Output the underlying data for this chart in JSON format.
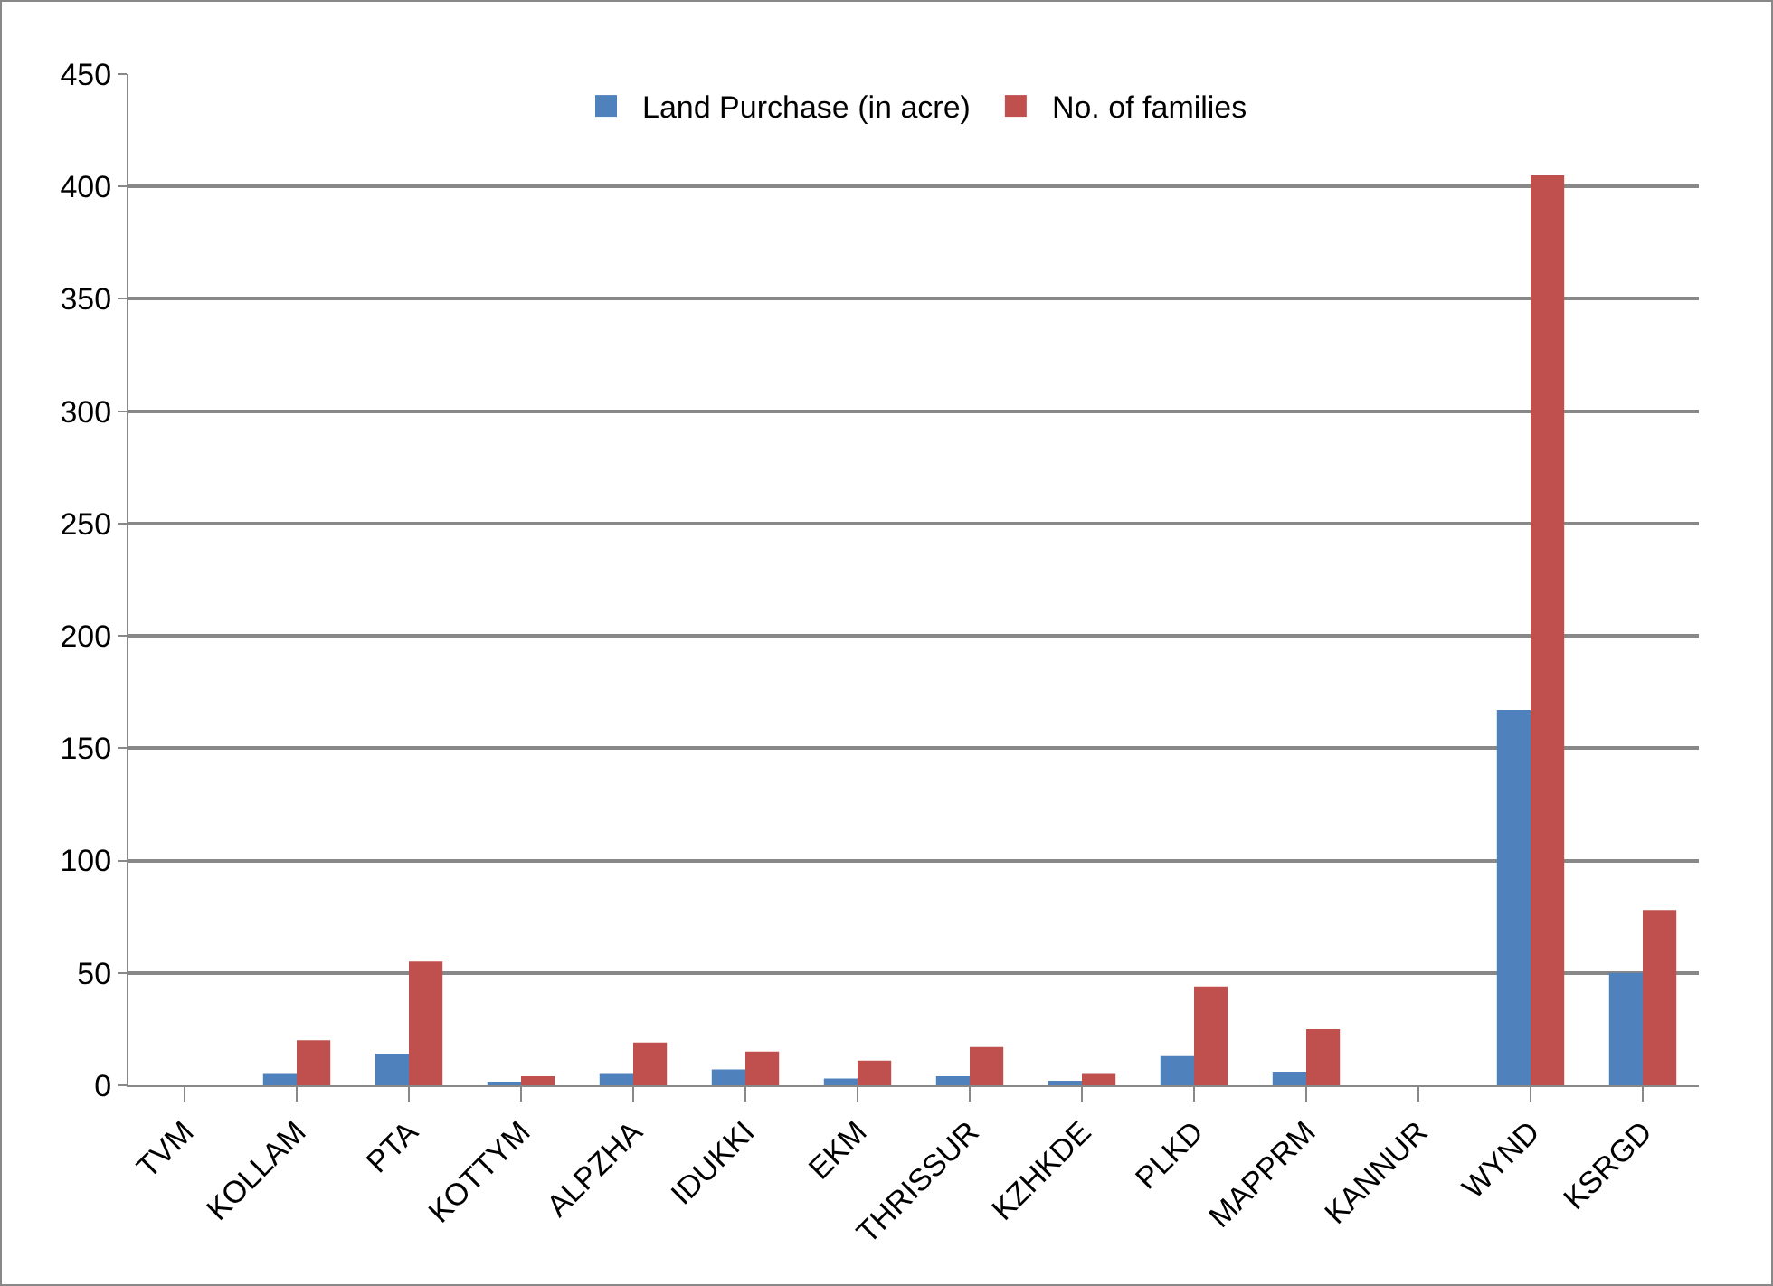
{
  "chart_data": {
    "type": "bar",
    "categories": [
      "TVM",
      "KOLLAM",
      "PTA",
      "KOTTYM",
      "ALPZHA",
      "IDUKKI",
      "EKM",
      "THRISSUR",
      "KZHKDE",
      "PLKD",
      "MAPPRM",
      "KANNUR",
      "WYND",
      "KSRGD"
    ],
    "series": [
      {
        "name": "Land Purchase (in acre)",
        "color": "#4f81bd",
        "values": [
          0,
          5,
          14,
          1,
          5,
          7,
          3,
          4,
          2,
          13,
          6,
          0,
          167,
          50
        ]
      },
      {
        "name": "No. of families",
        "color": "#c0504d",
        "values": [
          0,
          20,
          55,
          4,
          19,
          15,
          11,
          17,
          5,
          44,
          25,
          0,
          405,
          78
        ]
      }
    ],
    "ylim": [
      0,
      450
    ],
    "yticks": [
      0,
      50,
      100,
      150,
      200,
      250,
      300,
      350,
      400,
      450
    ],
    "grid": "y",
    "legend": "top"
  }
}
